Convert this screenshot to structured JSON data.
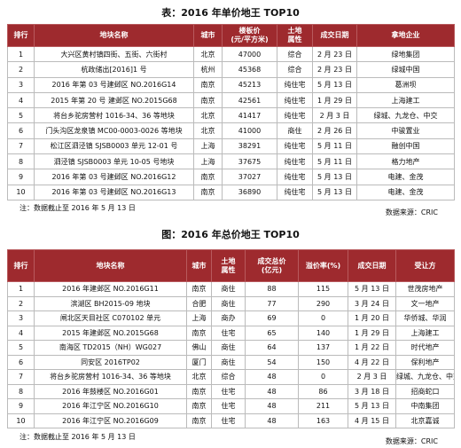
{
  "table1": {
    "title": "表：2016 年单价地王 TOP10",
    "headers": [
      [
        "排行"
      ],
      [
        "地块名称"
      ],
      [
        "城市"
      ],
      [
        "楼板价",
        "(元/平方米)"
      ],
      [
        "土地",
        "属性"
      ],
      [
        "成交日期"
      ],
      [
        "拿地企业"
      ]
    ],
    "rows": [
      [
        1,
        "大兴区黄村镇四街、五街、六街村",
        "北京",
        47000,
        "综合",
        "2 月 23 日",
        "绿地集团"
      ],
      [
        2,
        "杭政储出[2016]1 号",
        "杭州",
        45368,
        "综合",
        "2 月 23 日",
        "绿城中国"
      ],
      [
        3,
        "2016 年第 03 号建邺区 NO.2016G14",
        "南京",
        45213,
        "纯住宅",
        "5 月 13 日",
        "葛洲坝"
      ],
      [
        4,
        "2015 年第 20 号 建邺区 NO.2015G68",
        "南京",
        42561,
        "纯住宅",
        "1 月 29 日",
        "上海建工"
      ],
      [
        5,
        "将台乡驼房营村 1016-34、36 等地块",
        "北京",
        41417,
        "纯住宅",
        "2 月 3 日",
        "绿城、九龙仓、中交"
      ],
      [
        6,
        "门头沟区龙泉镇 MC00-0003-0026 等地块",
        "北京",
        41000,
        "商住",
        "2 月 26 日",
        "中骏置业"
      ],
      [
        7,
        "松江区泗泾镇 SJSB0003 单元 12-01 号",
        "上海",
        38291,
        "纯住宅",
        "5 月 11 日",
        "融创中国"
      ],
      [
        8,
        "泗泾镇 SJSB0003 单元 10-05 号地块",
        "上海",
        37675,
        "纯住宅",
        "5 月 11 日",
        "格力地产"
      ],
      [
        9,
        "2016 年第 03 号建邺区 NO.2016G12",
        "南京",
        37027,
        "纯住宅",
        "5 月 13 日",
        "电建、金茂"
      ],
      [
        10,
        "2016 年第 03 号建邺区 NO.2016G13",
        "南京",
        36890,
        "纯住宅",
        "5 月 13 日",
        "电建、金茂"
      ]
    ],
    "note": "注：数据截止至 2016 年 5 月 13 日",
    "source": "数据来源：CRIC"
  },
  "table2": {
    "title": "图：2016 年总价地王 TOP10",
    "headers": [
      [
        "排行"
      ],
      [
        "地块名称"
      ],
      [
        "城市"
      ],
      [
        "土地",
        "属性"
      ],
      [
        "成交总价",
        "(亿元)"
      ],
      [
        "溢价率(%)"
      ],
      [
        "成交日期"
      ],
      [
        "受让方"
      ]
    ],
    "rows": [
      [
        1,
        "2016 年建邺区 NO.2016G11",
        "南京",
        "商住",
        88,
        115,
        "5 月 13 日",
        "世茂房地产"
      ],
      [
        2,
        "滨湖区 BH2015-09 地块",
        "合肥",
        "商住",
        77,
        290,
        "3 月 24 日",
        "文一地产"
      ],
      [
        3,
        "闸北区天目社区 C070102 单元",
        "上海",
        "商办",
        69,
        0,
        "1 月 20 日",
        "华侨城、华润"
      ],
      [
        4,
        "2015 年建邺区 NO.2015G68",
        "南京",
        "住宅",
        65,
        140,
        "1 月 29 日",
        "上海建工"
      ],
      [
        5,
        "南海区 TD2015（NH）WG027",
        "佛山",
        "商住",
        64,
        137,
        "1 月 22 日",
        "时代地产"
      ],
      [
        6,
        "同安区 2016TP02",
        "厦门",
        "商住",
        54,
        150,
        "4 月 22 日",
        "保利地产"
      ],
      [
        7,
        "将台乡驼房营村 1016-34、36 等地块",
        "北京",
        "综合",
        48,
        0,
        "2 月 3 日",
        "绿城、九龙仓、中交"
      ],
      [
        8,
        "2016 年鼓楼区 NO.2016G01",
        "南京",
        "住宅",
        48,
        86,
        "3 月 18 日",
        "招商蛇口"
      ],
      [
        9,
        "2016 年江宁区 NO.2016G10",
        "南京",
        "住宅",
        48,
        211,
        "5 月 13 日",
        "中南集团"
      ],
      [
        10,
        "2016 年江宁区 NO.2016G09",
        "南京",
        "住宅",
        48,
        163,
        "4 月 15 日",
        "北京嘉诚"
      ]
    ],
    "note": "注：数据截止至 2016 年 5 月 13 日",
    "source": "数据来源：CRIC"
  }
}
